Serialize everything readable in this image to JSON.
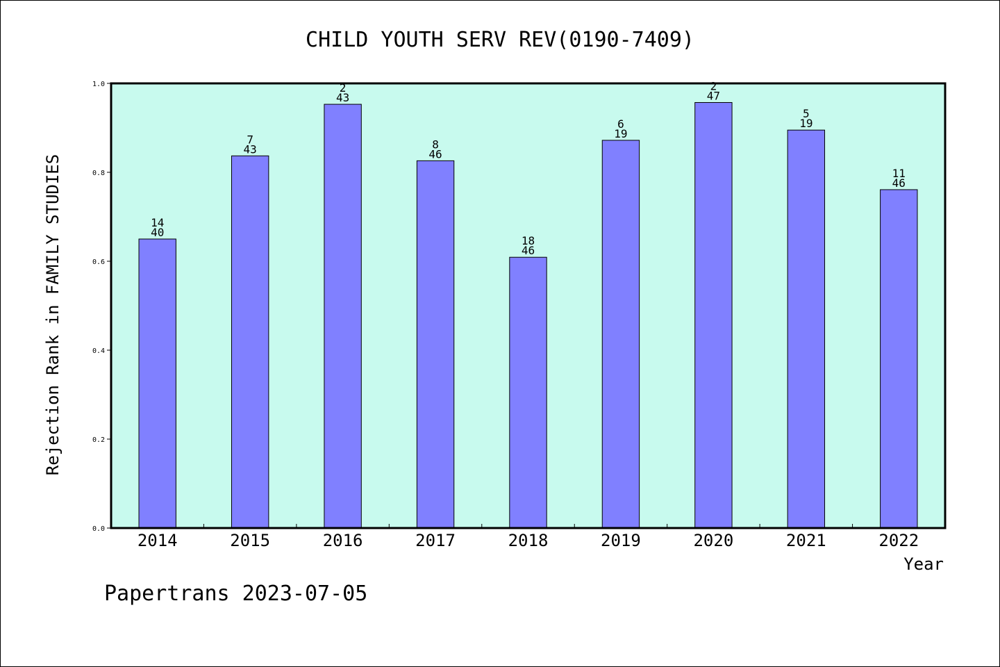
{
  "chart_data": {
    "type": "bar",
    "title": "CHILD YOUTH SERV REV(0190-7409)",
    "xlabel": "Year",
    "ylabel": "Rejection Rank in FAMILY STUDIES",
    "ylim": [
      0,
      1.0
    ],
    "yticks": [
      "0.0",
      "0.2",
      "0.4",
      "0.6",
      "0.8",
      "1.0"
    ],
    "categories": [
      "2014",
      "2015",
      "2016",
      "2017",
      "2018",
      "2019",
      "2020",
      "2021",
      "2022"
    ],
    "values": [
      0.65,
      0.837,
      0.953,
      0.826,
      0.609,
      0.872,
      0.957,
      0.895,
      0.761
    ],
    "rank_labels": [
      "14",
      "7",
      "2",
      "8",
      "18",
      "6",
      "2",
      "5",
      "11"
    ],
    "total_labels": [
      "40",
      "43",
      "43",
      "46",
      "46",
      "19",
      "47",
      "19",
      "46"
    ],
    "grid": false,
    "legend": "none",
    "colors": {
      "plot_background": "#c8faee",
      "bar_fill": "#8080ff",
      "bar_stroke": "#000000"
    }
  },
  "footer": {
    "watermark": "Papertrans 2023-07-05"
  }
}
